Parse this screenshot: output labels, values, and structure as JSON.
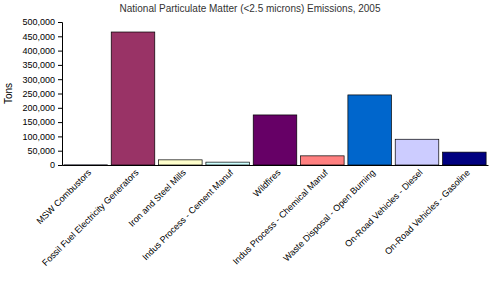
{
  "chart_data": {
    "type": "bar",
    "title": "National Particulate Matter (<2.5 microns) Emissions, 2005",
    "y_label": "Tons",
    "categories": [
      "MSW Combustors",
      "Fossil Fuel Electricity Generators",
      "Iron and Steel Mills",
      "Indus Process - Cement Manuf",
      "Wildfires",
      "Indus Process - Chemical Manuf",
      "Waste Disposal - Open Burning",
      "On-Road Vehicles - Diesel",
      "On-Road Vehicles - Gasoline"
    ],
    "values": [
      500,
      465000,
      18000,
      10000,
      175000,
      32000,
      245000,
      90000,
      45000
    ],
    "colors": [
      "#9999ff",
      "#993366",
      "#ffffcc",
      "#ccffff",
      "#660066",
      "#ff8080",
      "#0066cc",
      "#ccccff",
      "#000080"
    ],
    "ylim": [
      0,
      500000
    ],
    "yticks": [
      0,
      {
        "value": 50000,
        "label": "50,000"
      },
      {
        "value": 100000,
        "label": "100,000"
      },
      {
        "value": 150000,
        "label": "150,000"
      },
      {
        "value": 200000,
        "label": "200,000"
      },
      {
        "value": 250000,
        "label": "250,000"
      },
      {
        "value": 300000,
        "label": "300,000"
      },
      {
        "value": 350000,
        "label": "350,000"
      },
      {
        "value": 400000,
        "label": "400,000"
      },
      {
        "value": 450000,
        "label": "450,000"
      },
      {
        "value": 500000,
        "label": "500,000"
      }
    ],
    "grid": false
  }
}
